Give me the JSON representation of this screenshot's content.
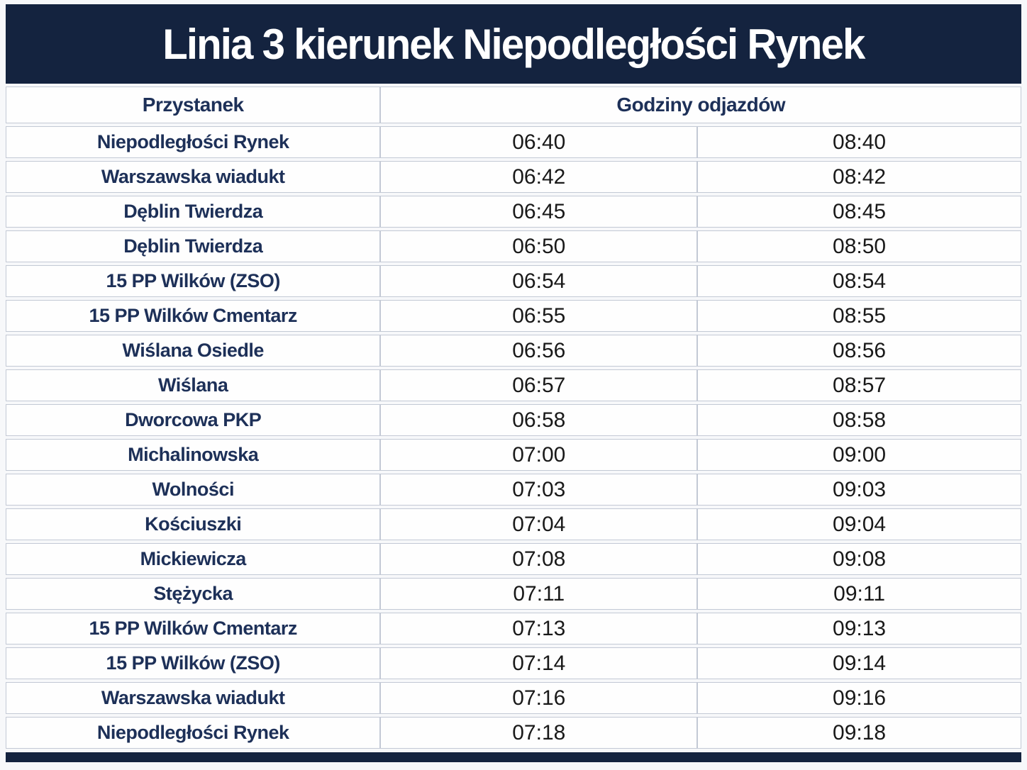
{
  "title": "Linia 3 kierunek Niepodległości Rynek",
  "colors": {
    "navy": "#14233F",
    "stop_text": "#1D3058",
    "time_text": "#191919",
    "border": "#C3C9D5",
    "page_bg": "#F7F8FA"
  },
  "table": {
    "headers": {
      "stop": "Przystanek",
      "times": "Godziny odjazdów"
    },
    "rows": [
      {
        "stop": "Niepodległości Rynek",
        "times": [
          "06:40",
          "08:40"
        ]
      },
      {
        "stop": "Warszawska wiadukt",
        "times": [
          "06:42",
          "08:42"
        ]
      },
      {
        "stop": "Dęblin Twierdza",
        "times": [
          "06:45",
          "08:45"
        ]
      },
      {
        "stop": "Dęblin Twierdza",
        "times": [
          "06:50",
          "08:50"
        ]
      },
      {
        "stop": "15 PP Wilków (ZSO)",
        "times": [
          "06:54",
          "08:54"
        ]
      },
      {
        "stop": "15 PP Wilków Cmentarz",
        "times": [
          "06:55",
          "08:55"
        ]
      },
      {
        "stop": "Wiślana Osiedle",
        "times": [
          "06:56",
          "08:56"
        ]
      },
      {
        "stop": "Wiślana",
        "times": [
          "06:57",
          "08:57"
        ]
      },
      {
        "stop": "Dworcowa PKP",
        "times": [
          "06:58",
          "08:58"
        ]
      },
      {
        "stop": "Michalinowska",
        "times": [
          "07:00",
          "09:00"
        ]
      },
      {
        "stop": "Wolności",
        "times": [
          "07:03",
          "09:03"
        ]
      },
      {
        "stop": "Kościuszki",
        "times": [
          "07:04",
          "09:04"
        ]
      },
      {
        "stop": "Mickiewicza",
        "times": [
          "07:08",
          "09:08"
        ]
      },
      {
        "stop": "Stężycka",
        "times": [
          "07:11",
          "09:11"
        ]
      },
      {
        "stop": "15 PP Wilków Cmentarz",
        "times": [
          "07:13",
          "09:13"
        ]
      },
      {
        "stop": "15 PP Wilków (ZSO)",
        "times": [
          "07:14",
          "09:14"
        ]
      },
      {
        "stop": "Warszawska wiadukt",
        "times": [
          "07:16",
          "09:16"
        ]
      },
      {
        "stop": "Niepodległości Rynek",
        "times": [
          "07:18",
          "09:18"
        ]
      }
    ]
  }
}
